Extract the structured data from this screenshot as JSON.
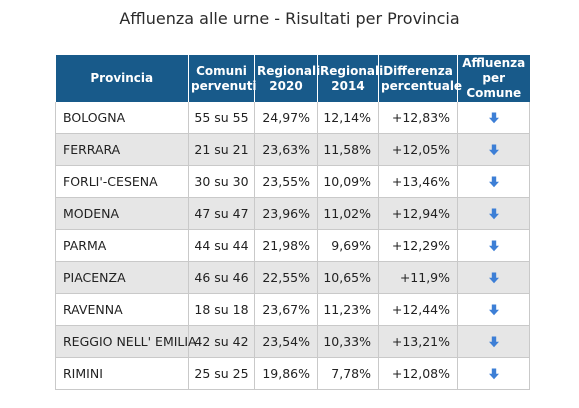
{
  "title": "Affluenza alle urne - Risultati per Provincia",
  "table": {
    "headers": {
      "provincia": "Provincia",
      "comuni_line1": "Comuni",
      "comuni_line2": "pervenuti",
      "reg2020_line1": "Regionali",
      "reg2020_line2": "2020",
      "reg2014_line1": "Regionali",
      "reg2014_line2": "2014",
      "diff_line1": "Differenza",
      "diff_line2": "percentuale",
      "aff_line1": "Affluenza",
      "aff_line2": "per Comune"
    },
    "rows": [
      {
        "provincia": "BOLOGNA",
        "comuni": "55 su 55",
        "reg2020": "24,97%",
        "reg2014": "12,14%",
        "diff": "+12,83%",
        "icon": "download-arrow-icon"
      },
      {
        "provincia": "FERRARA",
        "comuni": "21 su 21",
        "reg2020": "23,63%",
        "reg2014": "11,58%",
        "diff": "+12,05%",
        "icon": "download-arrow-icon"
      },
      {
        "provincia": "FORLI'-CESENA",
        "comuni": "30 su 30",
        "reg2020": "23,55%",
        "reg2014": "10,09%",
        "diff": "+13,46%",
        "icon": "download-arrow-icon"
      },
      {
        "provincia": "MODENA",
        "comuni": "47 su 47",
        "reg2020": "23,96%",
        "reg2014": "11,02%",
        "diff": "+12,94%",
        "icon": "download-arrow-icon"
      },
      {
        "provincia": "PARMA",
        "comuni": "44 su 44",
        "reg2020": "21,98%",
        "reg2014": "9,69%",
        "diff": "+12,29%",
        "icon": "download-arrow-icon"
      },
      {
        "provincia": "PIACENZA",
        "comuni": "46 su 46",
        "reg2020": "22,55%",
        "reg2014": "10,65%",
        "diff": "+11,9%",
        "icon": "download-arrow-icon"
      },
      {
        "provincia": "RAVENNA",
        "comuni": "18 su 18",
        "reg2020": "23,67%",
        "reg2014": "11,23%",
        "diff": "+12,44%",
        "icon": "download-arrow-icon"
      },
      {
        "provincia": "REGGIO NELL' EMILIA",
        "comuni": "42 su 42",
        "reg2020": "23,54%",
        "reg2014": "10,33%",
        "diff": "+13,21%",
        "icon": "download-arrow-icon"
      },
      {
        "provincia": "RIMINI",
        "comuni": "25 su 25",
        "reg2020": "19,86%",
        "reg2014": "7,78%",
        "diff": "+12,08%",
        "icon": "download-arrow-icon"
      }
    ]
  },
  "colors": {
    "header_bg": "#185a8a",
    "header_text": "#ffffff",
    "alt_row_bg": "#e6e6e6",
    "icon_blue": "#3d7fd6"
  }
}
